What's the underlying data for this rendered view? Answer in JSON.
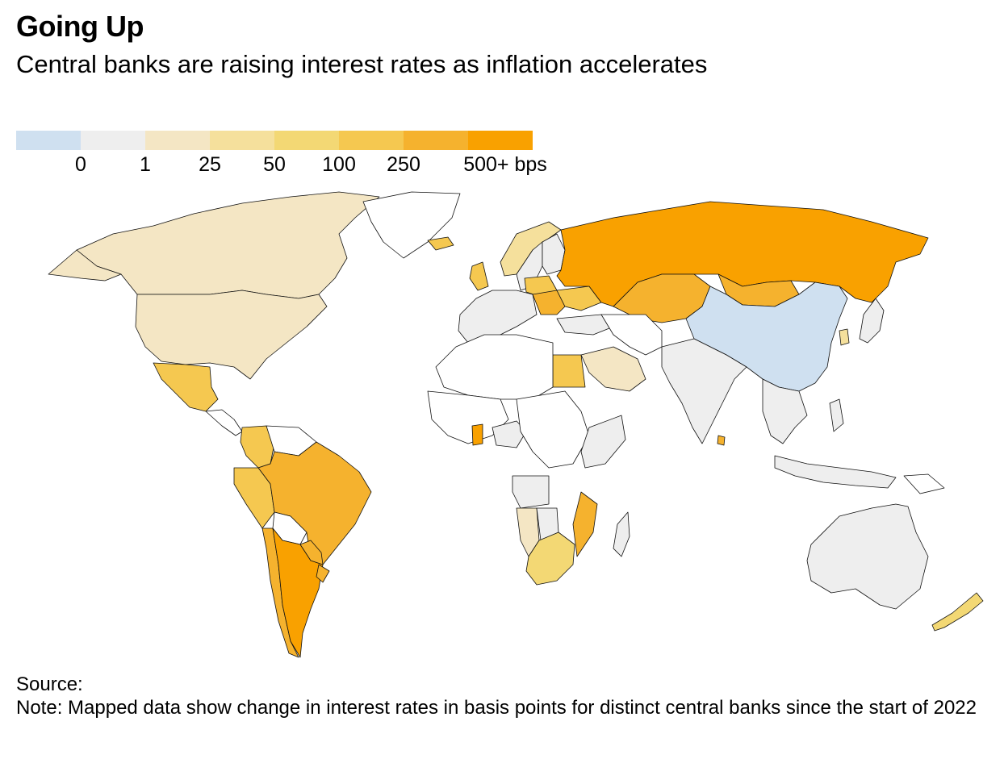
{
  "header": {
    "title": "Going Up",
    "subtitle": "Central banks are raising interest rates as inflation accelerates"
  },
  "legend": {
    "bins": [
      {
        "label": "",
        "color": "#cfe0f0"
      },
      {
        "label": "0",
        "color": "#eeeeee"
      },
      {
        "label": "1",
        "color": "#f4e6c4"
      },
      {
        "label": "25",
        "color": "#f5e09c"
      },
      {
        "label": "50",
        "color": "#f3d874"
      },
      {
        "label": "100",
        "color": "#f5c850"
      },
      {
        "label": "250",
        "color": "#f5b22e"
      },
      {
        "label": "500+ bps",
        "color": "#f9a100"
      }
    ],
    "tick_labels": [
      "0",
      "1",
      "25",
      "50",
      "100",
      "250",
      "500+ bps"
    ]
  },
  "map": {
    "regions": [
      {
        "name": "Canada",
        "color": "#f4e6c4"
      },
      {
        "name": "United States",
        "color": "#f4e6c4"
      },
      {
        "name": "Alaska",
        "color": "#f4e6c4"
      },
      {
        "name": "Greenland",
        "color": "#ffffff"
      },
      {
        "name": "Mexico",
        "color": "#f5c850"
      },
      {
        "name": "Central America",
        "color": "#ffffff"
      },
      {
        "name": "Colombia",
        "color": "#f5c850"
      },
      {
        "name": "Venezuela",
        "color": "#ffffff"
      },
      {
        "name": "Peru",
        "color": "#f5c850"
      },
      {
        "name": "Brazil",
        "color": "#f5b22e"
      },
      {
        "name": "Bolivia",
        "color": "#ffffff"
      },
      {
        "name": "Chile",
        "color": "#f5b22e"
      },
      {
        "name": "Argentina",
        "color": "#f9a100"
      },
      {
        "name": "Paraguay",
        "color": "#f5b22e"
      },
      {
        "name": "Uruguay",
        "color": "#f5b22e"
      },
      {
        "name": "United Kingdom",
        "color": "#f5c850"
      },
      {
        "name": "Iceland",
        "color": "#f5c850"
      },
      {
        "name": "Norway",
        "color": "#f5e09c"
      },
      {
        "name": "Sweden",
        "color": "#eeeeee"
      },
      {
        "name": "Finland",
        "color": "#eeeeee"
      },
      {
        "name": "Western Europe",
        "color": "#eeeeee"
      },
      {
        "name": "Poland",
        "color": "#f5c850"
      },
      {
        "name": "Central Europe",
        "color": "#f5b22e"
      },
      {
        "name": "Ukraine",
        "color": "#f5c850"
      },
      {
        "name": "Turkey",
        "color": "#eeeeee"
      },
      {
        "name": "Russia",
        "color": "#f9a100"
      },
      {
        "name": "Kazakhstan",
        "color": "#f5b22e"
      },
      {
        "name": "Mongolia",
        "color": "#f5b22e"
      },
      {
        "name": "China",
        "color": "#cfe0f0"
      },
      {
        "name": "Japan",
        "color": "#eeeeee"
      },
      {
        "name": "South Korea",
        "color": "#f5e09c"
      },
      {
        "name": "India",
        "color": "#eeeeee"
      },
      {
        "name": "Sri Lanka",
        "color": "#f5b22e"
      },
      {
        "name": "Middle East",
        "color": "#ffffff"
      },
      {
        "name": "Saudi Arabia",
        "color": "#f4e6c4"
      },
      {
        "name": "Egypt",
        "color": "#f5c850"
      },
      {
        "name": "North Africa",
        "color": "#ffffff"
      },
      {
        "name": "West Africa",
        "color": "#ffffff"
      },
      {
        "name": "Ghana",
        "color": "#f9a100"
      },
      {
        "name": "Nigeria",
        "color": "#eeeeee"
      },
      {
        "name": "Central Africa",
        "color": "#ffffff"
      },
      {
        "name": "East Africa",
        "color": "#eeeeee"
      },
      {
        "name": "Angola",
        "color": "#eeeeee"
      },
      {
        "name": "Namibia",
        "color": "#f4e6c4"
      },
      {
        "name": "Botswana",
        "color": "#eeeeee"
      },
      {
        "name": "Mozambique",
        "color": "#f5b22e"
      },
      {
        "name": "South Africa",
        "color": "#f3d874"
      },
      {
        "name": "Madagascar",
        "color": "#eeeeee"
      },
      {
        "name": "Southeast Asia",
        "color": "#eeeeee"
      },
      {
        "name": "Philippines",
        "color": "#eeeeee"
      },
      {
        "name": "Indonesia",
        "color": "#eeeeee"
      },
      {
        "name": "Papua New Guinea",
        "color": "#ffffff"
      },
      {
        "name": "Australia",
        "color": "#eeeeee"
      },
      {
        "name": "New Zealand",
        "color": "#f3d874"
      }
    ]
  },
  "footer": {
    "source": "Source:",
    "note": "Note: Mapped data show change in interest rates in basis points for distinct central banks since the start of 2022"
  }
}
